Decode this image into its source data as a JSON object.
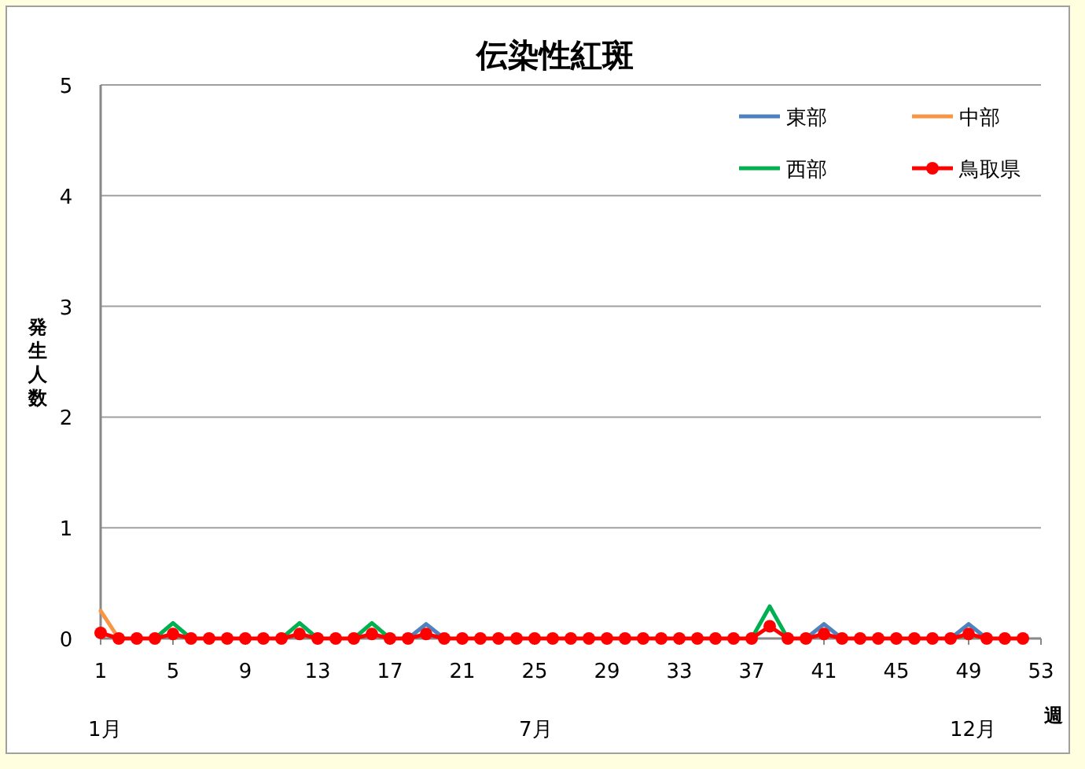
{
  "chart_data": {
    "type": "line",
    "title": "伝染性紅斑",
    "xlabel": "週",
    "ylabel": "発生人数",
    "x": [
      1,
      2,
      3,
      4,
      5,
      6,
      7,
      8,
      9,
      10,
      11,
      12,
      13,
      14,
      15,
      16,
      17,
      18,
      19,
      20,
      21,
      22,
      23,
      24,
      25,
      26,
      27,
      28,
      29,
      30,
      31,
      32,
      33,
      34,
      35,
      36,
      37,
      38,
      39,
      40,
      41,
      42,
      43,
      44,
      45,
      46,
      47,
      48,
      49,
      50,
      51,
      52
    ],
    "xlim": [
      1,
      53
    ],
    "xticks": [
      1,
      5,
      9,
      13,
      17,
      21,
      25,
      29,
      33,
      37,
      41,
      45,
      49,
      53
    ],
    "annotations": [
      "1月",
      "7月",
      "12月"
    ],
    "ylim": [
      0,
      5
    ],
    "yticks": [
      0,
      1,
      2,
      3,
      4,
      5
    ],
    "grid": "y",
    "legend": "top right",
    "series": [
      {
        "name": "東部",
        "color": "#4f81bd",
        "marker": "none",
        "values": [
          null,
          null,
          null,
          null,
          null,
          null,
          null,
          null,
          null,
          null,
          null,
          null,
          null,
          null,
          null,
          null,
          null,
          0,
          0.13,
          0,
          null,
          null,
          null,
          null,
          null,
          null,
          null,
          null,
          null,
          null,
          null,
          null,
          null,
          null,
          null,
          null,
          null,
          null,
          null,
          0,
          0.13,
          0,
          null,
          null,
          null,
          null,
          null,
          0,
          0.13,
          0,
          null,
          null
        ]
      },
      {
        "name": "中部",
        "color": "#f79646",
        "marker": "none",
        "values": [
          0.25,
          0,
          null,
          null,
          null,
          null,
          null,
          null,
          null,
          null,
          null,
          null,
          null,
          null,
          null,
          null,
          null,
          null,
          null,
          null,
          null,
          null,
          null,
          null,
          null,
          null,
          null,
          null,
          null,
          null,
          null,
          null,
          null,
          null,
          null,
          null,
          null,
          null,
          null,
          null,
          null,
          null,
          null,
          null,
          null,
          null,
          null,
          null,
          null,
          null,
          null,
          null
        ]
      },
      {
        "name": "西部",
        "color": "#00b050",
        "marker": "none",
        "values": [
          null,
          null,
          null,
          0,
          0.14,
          0,
          null,
          null,
          null,
          null,
          0,
          0.14,
          0,
          null,
          0,
          0.14,
          0,
          null,
          null,
          null,
          null,
          null,
          null,
          null,
          null,
          null,
          null,
          null,
          null,
          null,
          null,
          null,
          null,
          null,
          null,
          null,
          0,
          0.29,
          0,
          null,
          null,
          null,
          null,
          null,
          null,
          null,
          null,
          null,
          null,
          null,
          null,
          null
        ]
      },
      {
        "name": "鳥取県",
        "color": "#ff0000",
        "marker": "circle",
        "values": [
          0.05,
          0,
          0,
          0,
          0.04,
          0,
          0,
          0,
          0,
          0,
          0,
          0.04,
          0,
          0,
          0,
          0.04,
          0,
          0,
          0.04,
          0,
          0,
          0,
          0,
          0,
          0,
          0,
          0,
          0,
          0,
          0,
          0,
          0,
          0,
          0,
          0,
          0,
          0,
          0.11,
          0,
          0,
          0.04,
          0,
          0,
          0,
          0,
          0,
          0,
          0,
          0.04,
          0,
          0,
          0
        ]
      }
    ]
  }
}
